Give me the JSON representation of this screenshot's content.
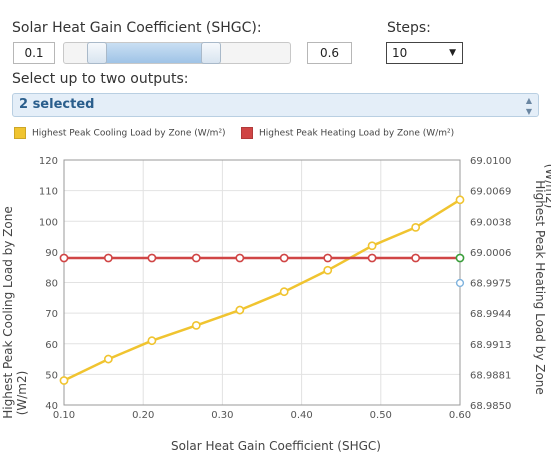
{
  "controls": {
    "shgc_label": "Solar Heat Gain Coefficient (SHGC):",
    "min_value": "0.1",
    "max_value": "0.6",
    "slider_range": [
      0.1,
      0.6
    ],
    "slider_bounds": [
      0.0,
      0.9
    ],
    "steps_label": "Steps:",
    "steps_value": "10",
    "outputs_label": "Select up to two outputs:",
    "outputs_value": "2 selected"
  },
  "colors": {
    "cooling": "#f0c430",
    "heating": "#d04545",
    "slider_fill": "#a9cbea"
  },
  "chart_data": {
    "type": "line",
    "xlabel": "Solar Heat Gain Coefficient (SHGC)",
    "x_ticks": [
      "0.10",
      "0.20",
      "0.30",
      "0.40",
      "0.50",
      "0.60"
    ],
    "xlim": [
      0.1,
      0.6
    ],
    "y_left": {
      "label": "Highest Peak Cooling Load by Zone (W/m2)",
      "ticks": [
        "40",
        "50",
        "60",
        "70",
        "80",
        "90",
        "100",
        "110",
        "120"
      ],
      "lim": [
        40,
        120
      ]
    },
    "y_right": {
      "label": "Highest Peak Heating Load by Zone (W/m2)",
      "ticks": [
        "68.9850",
        "68.9881",
        "68.9913",
        "68.9944",
        "68.9975",
        "69.0006",
        "69.0038",
        "69.0069",
        "69.0100"
      ],
      "lim": [
        68.985,
        69.01
      ]
    },
    "grid": true,
    "legend_position": "top-left",
    "x": [
      0.1,
      0.156,
      0.211,
      0.267,
      0.322,
      0.378,
      0.433,
      0.489,
      0.544,
      0.6
    ],
    "series": [
      {
        "name": "Highest Peak Cooling Load by Zone (W/m²)",
        "axis": "left",
        "color": "#f0c430",
        "values": [
          48,
          55,
          61,
          66,
          71,
          77,
          84,
          92,
          98,
          107
        ]
      },
      {
        "name": "Highest Peak Heating Load by Zone (W/m²)",
        "axis": "right",
        "color": "#d04545",
        "values": [
          69.0,
          69.0,
          69.0,
          69.0,
          69.0,
          69.0,
          69.0,
          69.0,
          69.0,
          69.0
        ]
      }
    ]
  }
}
